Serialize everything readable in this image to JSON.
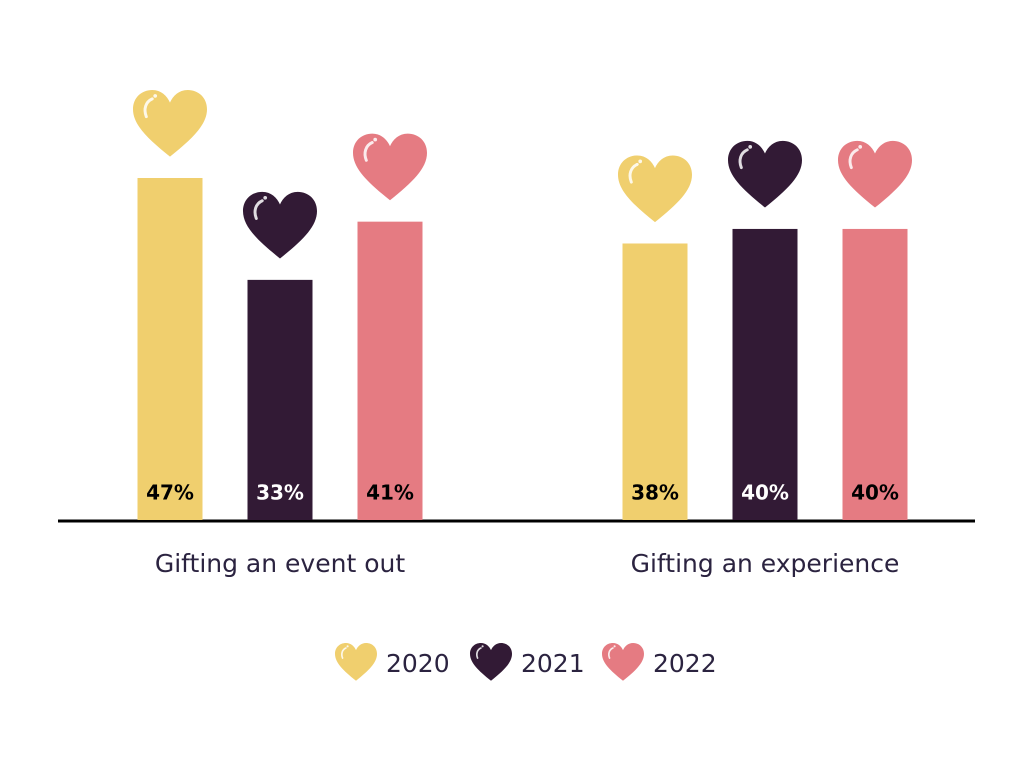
{
  "chart_data": {
    "type": "bar",
    "categories": [
      "Gifting an event out",
      "Gifting an experience"
    ],
    "series": [
      {
        "name": "2020",
        "color": "#f0cf6e",
        "values": [
          47,
          38
        ],
        "value_labels": [
          "47%",
          "38%"
        ]
      },
      {
        "name": "2021",
        "color": "#321a35",
        "values": [
          33,
          40
        ],
        "value_labels": [
          "33%",
          "40%"
        ]
      },
      {
        "name": "2022",
        "color": "#e57b82",
        "values": [
          41,
          40
        ],
        "value_labels": [
          "41%",
          "40%"
        ]
      }
    ]
  }
}
